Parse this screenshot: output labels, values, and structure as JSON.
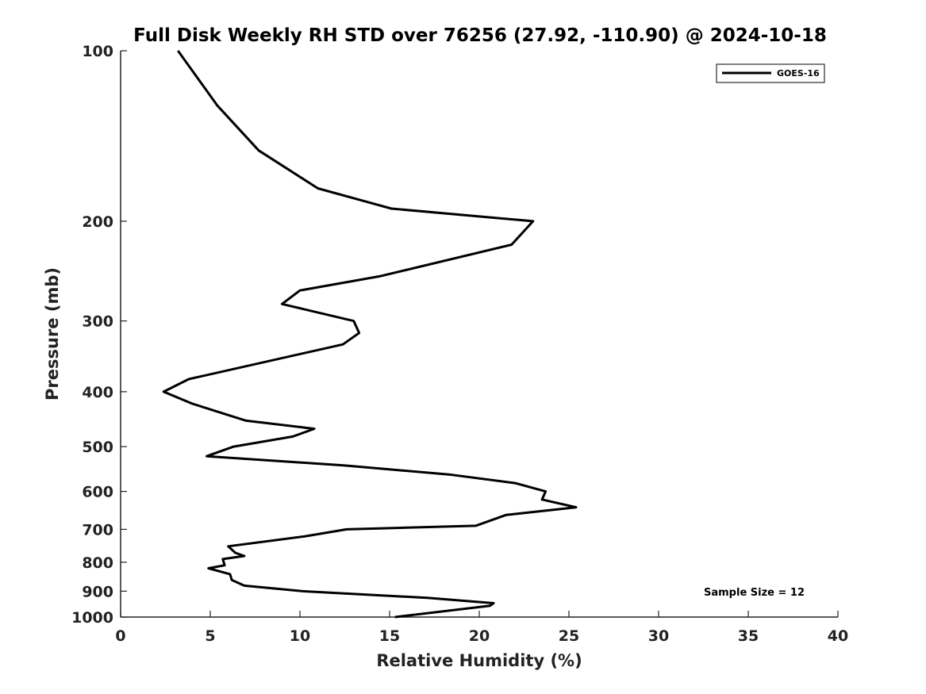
{
  "chart_data": {
    "type": "line",
    "title": "Full Disk Weekly RH STD over 76256 (27.92, -110.90) @ 2024-10-18",
    "xlabel": "Relative Humidity (%)",
    "ylabel": "Pressure (mb)",
    "xlim": [
      0,
      40
    ],
    "ylim": [
      1000,
      100
    ],
    "y_scale": "log",
    "x_ticks": [
      "0",
      "5",
      "10",
      "15",
      "20",
      "25",
      "30",
      "35",
      "40"
    ],
    "y_ticks": [
      "100",
      "200",
      "300",
      "400",
      "500",
      "600",
      "700",
      "800",
      "900",
      "1000"
    ],
    "grid": false,
    "legend": {
      "placement": "top-right",
      "entries": [
        "GOES-16"
      ]
    },
    "annotation": "Sample Size = 12",
    "series": [
      {
        "name": "GOES-16",
        "color": "#000000",
        "points": [
          [
            3.2,
            100
          ],
          [
            5.4,
            125
          ],
          [
            7.7,
            150
          ],
          [
            11.0,
            175
          ],
          [
            15.1,
            190
          ],
          [
            23.0,
            200
          ],
          [
            21.8,
            220
          ],
          [
            14.5,
            250
          ],
          [
            10.0,
            265
          ],
          [
            9.0,
            280
          ],
          [
            13.0,
            300
          ],
          [
            13.3,
            315
          ],
          [
            12.4,
            330
          ],
          [
            3.8,
            380
          ],
          [
            2.4,
            400
          ],
          [
            4.0,
            420
          ],
          [
            7.0,
            450
          ],
          [
            10.8,
            465
          ],
          [
            9.6,
            480
          ],
          [
            6.3,
            500
          ],
          [
            4.8,
            520
          ],
          [
            12.5,
            540
          ],
          [
            18.3,
            560
          ],
          [
            22.0,
            580
          ],
          [
            23.7,
            600
          ],
          [
            23.5,
            620
          ],
          [
            25.4,
            640
          ],
          [
            21.5,
            660
          ],
          [
            19.8,
            690
          ],
          [
            12.6,
            700
          ],
          [
            10.3,
            720
          ],
          [
            6.0,
            750
          ],
          [
            6.4,
            770
          ],
          [
            6.9,
            780
          ],
          [
            5.7,
            790
          ],
          [
            5.8,
            810
          ],
          [
            4.9,
            820
          ],
          [
            6.1,
            840
          ],
          [
            6.2,
            860
          ],
          [
            6.9,
            880
          ],
          [
            10.1,
            900
          ],
          [
            17.1,
            925
          ],
          [
            20.8,
            945
          ],
          [
            20.6,
            955
          ],
          [
            15.3,
            1000
          ]
        ]
      }
    ]
  }
}
